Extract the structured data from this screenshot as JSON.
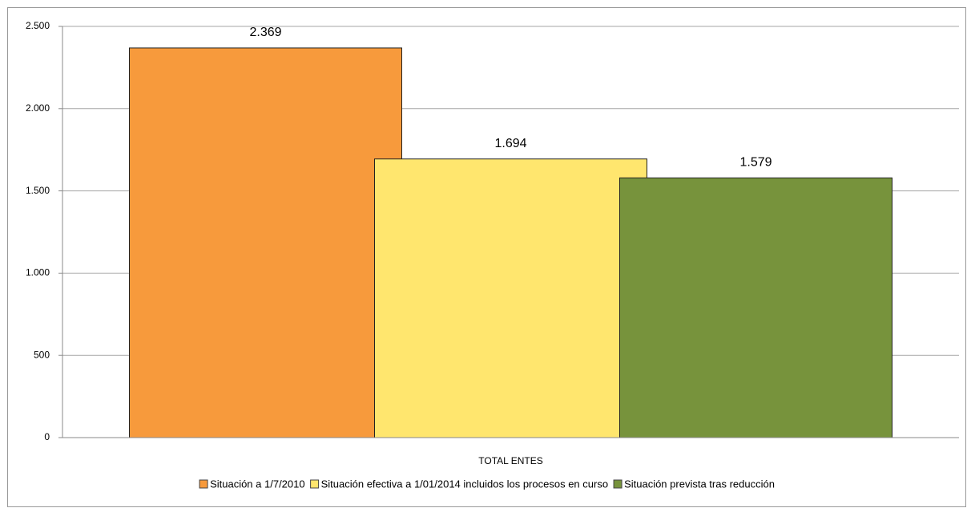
{
  "chart_data": {
    "type": "bar",
    "categories": [
      "TOTAL ENTES"
    ],
    "series": [
      {
        "name": "Situación a 1/7/2010",
        "color": "#f79a3c",
        "values": [
          2369
        ],
        "value_labels": [
          "2.369"
        ]
      },
      {
        "name": "Situación efectiva a 1/01/2014 incluidos los procesos en curso",
        "color": "#ffe66e",
        "values": [
          1694
        ],
        "value_labels": [
          "1.694"
        ]
      },
      {
        "name": "Situación prevista tras reducción",
        "color": "#77933c",
        "values": [
          1579
        ],
        "value_labels": [
          "1.579"
        ]
      }
    ],
    "ylim": [
      0,
      2500
    ],
    "yticks": [
      0,
      500,
      {
        "value": 1000,
        "label": "1.000"
      },
      {
        "value": 1500,
        "label": "1.500"
      },
      {
        "value": 2000,
        "label": "2.000"
      },
      {
        "value": 2500,
        "label": "2.500"
      }
    ],
    "grid": true,
    "legend": "bottom"
  }
}
